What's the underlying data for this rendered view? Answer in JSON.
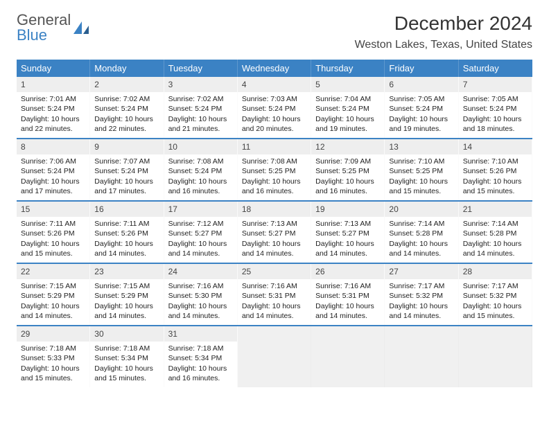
{
  "brand": {
    "part1": "General",
    "part2": "Blue"
  },
  "title": "December 2024",
  "location": "Weston Lakes, Texas, United States",
  "colors": {
    "accent": "#3b82c4",
    "num_bg": "#eeeeee",
    "empty_bg": "#f0f0f0",
    "text": "#222222",
    "bg": "#ffffff"
  },
  "day_names": [
    "Sunday",
    "Monday",
    "Tuesday",
    "Wednesday",
    "Thursday",
    "Friday",
    "Saturday"
  ],
  "weeks": [
    [
      {
        "n": "1",
        "sr": "Sunrise: 7:01 AM",
        "ss": "Sunset: 5:24 PM",
        "dl": "Daylight: 10 hours and 22 minutes."
      },
      {
        "n": "2",
        "sr": "Sunrise: 7:02 AM",
        "ss": "Sunset: 5:24 PM",
        "dl": "Daylight: 10 hours and 22 minutes."
      },
      {
        "n": "3",
        "sr": "Sunrise: 7:02 AM",
        "ss": "Sunset: 5:24 PM",
        "dl": "Daylight: 10 hours and 21 minutes."
      },
      {
        "n": "4",
        "sr": "Sunrise: 7:03 AM",
        "ss": "Sunset: 5:24 PM",
        "dl": "Daylight: 10 hours and 20 minutes."
      },
      {
        "n": "5",
        "sr": "Sunrise: 7:04 AM",
        "ss": "Sunset: 5:24 PM",
        "dl": "Daylight: 10 hours and 19 minutes."
      },
      {
        "n": "6",
        "sr": "Sunrise: 7:05 AM",
        "ss": "Sunset: 5:24 PM",
        "dl": "Daylight: 10 hours and 19 minutes."
      },
      {
        "n": "7",
        "sr": "Sunrise: 7:05 AM",
        "ss": "Sunset: 5:24 PM",
        "dl": "Daylight: 10 hours and 18 minutes."
      }
    ],
    [
      {
        "n": "8",
        "sr": "Sunrise: 7:06 AM",
        "ss": "Sunset: 5:24 PM",
        "dl": "Daylight: 10 hours and 17 minutes."
      },
      {
        "n": "9",
        "sr": "Sunrise: 7:07 AM",
        "ss": "Sunset: 5:24 PM",
        "dl": "Daylight: 10 hours and 17 minutes."
      },
      {
        "n": "10",
        "sr": "Sunrise: 7:08 AM",
        "ss": "Sunset: 5:24 PM",
        "dl": "Daylight: 10 hours and 16 minutes."
      },
      {
        "n": "11",
        "sr": "Sunrise: 7:08 AM",
        "ss": "Sunset: 5:25 PM",
        "dl": "Daylight: 10 hours and 16 minutes."
      },
      {
        "n": "12",
        "sr": "Sunrise: 7:09 AM",
        "ss": "Sunset: 5:25 PM",
        "dl": "Daylight: 10 hours and 16 minutes."
      },
      {
        "n": "13",
        "sr": "Sunrise: 7:10 AM",
        "ss": "Sunset: 5:25 PM",
        "dl": "Daylight: 10 hours and 15 minutes."
      },
      {
        "n": "14",
        "sr": "Sunrise: 7:10 AM",
        "ss": "Sunset: 5:26 PM",
        "dl": "Daylight: 10 hours and 15 minutes."
      }
    ],
    [
      {
        "n": "15",
        "sr": "Sunrise: 7:11 AM",
        "ss": "Sunset: 5:26 PM",
        "dl": "Daylight: 10 hours and 15 minutes."
      },
      {
        "n": "16",
        "sr": "Sunrise: 7:11 AM",
        "ss": "Sunset: 5:26 PM",
        "dl": "Daylight: 10 hours and 14 minutes."
      },
      {
        "n": "17",
        "sr": "Sunrise: 7:12 AM",
        "ss": "Sunset: 5:27 PM",
        "dl": "Daylight: 10 hours and 14 minutes."
      },
      {
        "n": "18",
        "sr": "Sunrise: 7:13 AM",
        "ss": "Sunset: 5:27 PM",
        "dl": "Daylight: 10 hours and 14 minutes."
      },
      {
        "n": "19",
        "sr": "Sunrise: 7:13 AM",
        "ss": "Sunset: 5:27 PM",
        "dl": "Daylight: 10 hours and 14 minutes."
      },
      {
        "n": "20",
        "sr": "Sunrise: 7:14 AM",
        "ss": "Sunset: 5:28 PM",
        "dl": "Daylight: 10 hours and 14 minutes."
      },
      {
        "n": "21",
        "sr": "Sunrise: 7:14 AM",
        "ss": "Sunset: 5:28 PM",
        "dl": "Daylight: 10 hours and 14 minutes."
      }
    ],
    [
      {
        "n": "22",
        "sr": "Sunrise: 7:15 AM",
        "ss": "Sunset: 5:29 PM",
        "dl": "Daylight: 10 hours and 14 minutes."
      },
      {
        "n": "23",
        "sr": "Sunrise: 7:15 AM",
        "ss": "Sunset: 5:29 PM",
        "dl": "Daylight: 10 hours and 14 minutes."
      },
      {
        "n": "24",
        "sr": "Sunrise: 7:16 AM",
        "ss": "Sunset: 5:30 PM",
        "dl": "Daylight: 10 hours and 14 minutes."
      },
      {
        "n": "25",
        "sr": "Sunrise: 7:16 AM",
        "ss": "Sunset: 5:31 PM",
        "dl": "Daylight: 10 hours and 14 minutes."
      },
      {
        "n": "26",
        "sr": "Sunrise: 7:16 AM",
        "ss": "Sunset: 5:31 PM",
        "dl": "Daylight: 10 hours and 14 minutes."
      },
      {
        "n": "27",
        "sr": "Sunrise: 7:17 AM",
        "ss": "Sunset: 5:32 PM",
        "dl": "Daylight: 10 hours and 14 minutes."
      },
      {
        "n": "28",
        "sr": "Sunrise: 7:17 AM",
        "ss": "Sunset: 5:32 PM",
        "dl": "Daylight: 10 hours and 15 minutes."
      }
    ],
    [
      {
        "n": "29",
        "sr": "Sunrise: 7:18 AM",
        "ss": "Sunset: 5:33 PM",
        "dl": "Daylight: 10 hours and 15 minutes."
      },
      {
        "n": "30",
        "sr": "Sunrise: 7:18 AM",
        "ss": "Sunset: 5:34 PM",
        "dl": "Daylight: 10 hours and 15 minutes."
      },
      {
        "n": "31",
        "sr": "Sunrise: 7:18 AM",
        "ss": "Sunset: 5:34 PM",
        "dl": "Daylight: 10 hours and 16 minutes."
      },
      null,
      null,
      null,
      null
    ]
  ]
}
